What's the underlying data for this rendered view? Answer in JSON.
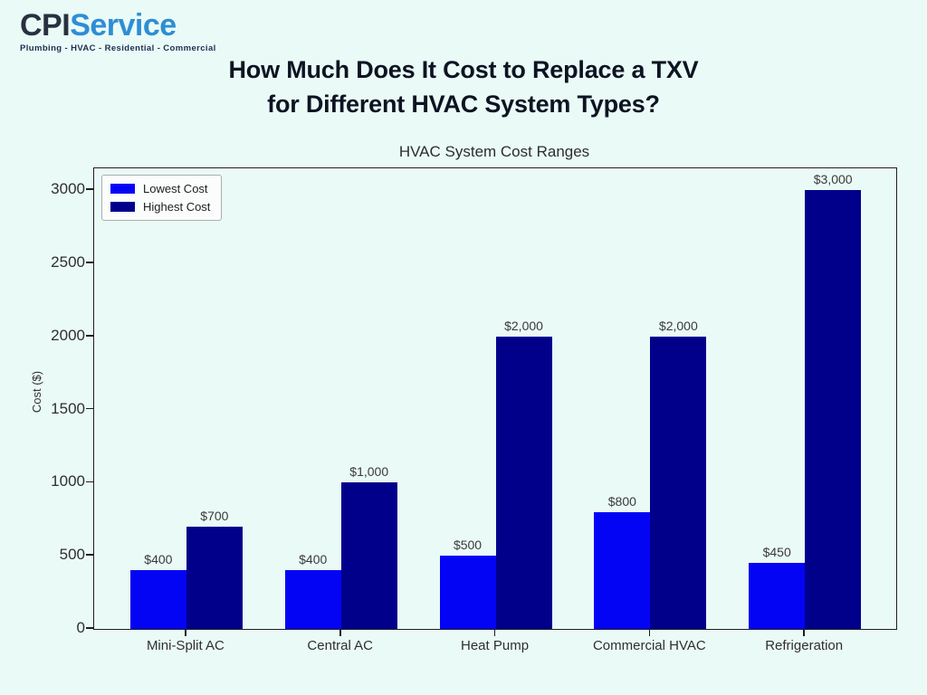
{
  "page": {
    "background_color": "#eafaf7"
  },
  "logo": {
    "brand_primary": "CPI",
    "brand_secondary": "Service",
    "tagline": "Plumbing - HVAC - Residential - Commercial",
    "primary_color": "#27313f",
    "secondary_color": "#2e8ed4",
    "tagline_color": "#1d2f52"
  },
  "heading": {
    "line1": "How Much Does It Cost to Replace a TXV",
    "line2": "for Different HVAC System Types?",
    "color": "#0c1422"
  },
  "chart_data": {
    "type": "bar",
    "title": "HVAC System Cost Ranges",
    "xlabel": "",
    "ylabel": "Cost ($)",
    "categories": [
      "Mini-Split AC",
      "Central AC",
      "Heat Pump",
      "Commercial HVAC",
      "Refrigeration"
    ],
    "series": [
      {
        "name": "Lowest Cost",
        "color": "#0404f5",
        "values": [
          400,
          400,
          500,
          800,
          450
        ],
        "labels": [
          "$400",
          "$400",
          "$500",
          "$800",
          "$450"
        ]
      },
      {
        "name": "Highest Cost",
        "color": "#00008b",
        "values": [
          700,
          1000,
          2000,
          2000,
          3000
        ],
        "labels": [
          "$700",
          "$1,000",
          "$2,000",
          "$2,000",
          "$3,000"
        ]
      }
    ],
    "ylim": [
      0,
      3150
    ],
    "yticks": [
      0,
      500,
      1000,
      1500,
      2000,
      2500,
      3000
    ],
    "legend_position": "upper left",
    "grid": false
  }
}
